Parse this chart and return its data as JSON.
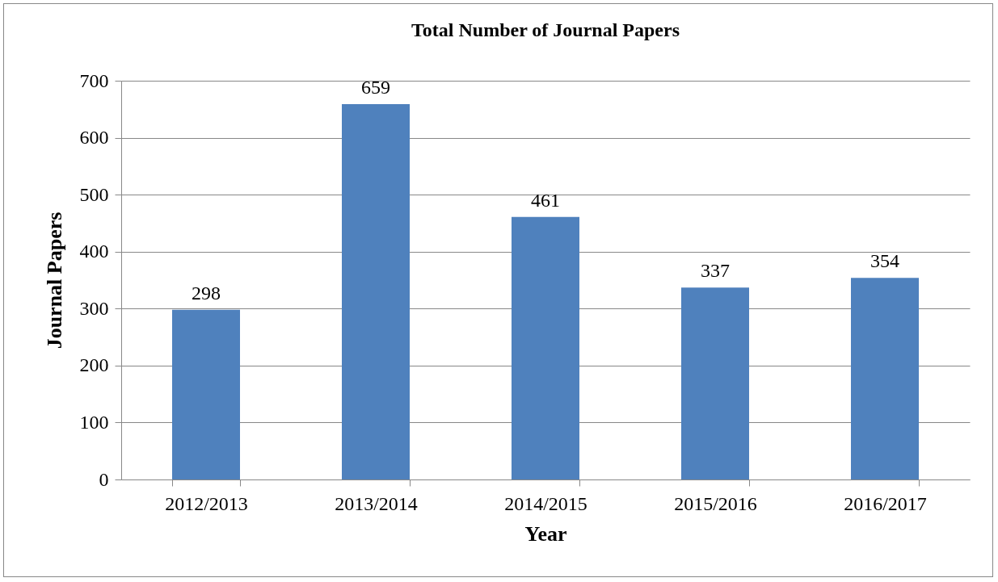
{
  "chart_data": {
    "type": "bar",
    "title": "Total Number of Journal Papers",
    "xlabel": "Year",
    "ylabel": "Journal Papers",
    "categories": [
      "2012/2013",
      "2013/2014",
      "2014/2015",
      "2015/2016",
      "2016/2017"
    ],
    "values": [
      298,
      659,
      461,
      337,
      354
    ],
    "color": "#4f81bd",
    "ylim": [
      0,
      700
    ],
    "yticks": [
      0,
      100,
      200,
      300,
      400,
      500,
      600,
      700
    ],
    "grid": "y",
    "data_labels": true
  }
}
